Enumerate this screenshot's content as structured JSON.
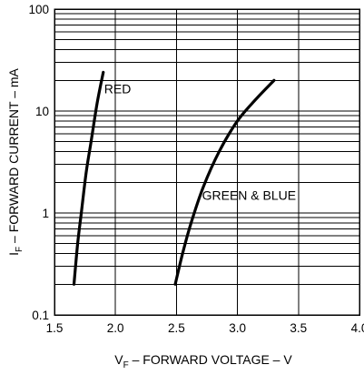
{
  "chart_data": {
    "type": "line",
    "x_scale": "linear",
    "y_scale": "log",
    "xlim": [
      1.5,
      4.0
    ],
    "ylim": [
      0.1,
      100
    ],
    "grid": true,
    "xlabel": {
      "prefix": "V",
      "subscript": "F",
      "suffix": " – FORWARD VOLTAGE – V"
    },
    "ylabel": {
      "prefix": "I",
      "subscript": "F",
      "suffix": " – FORWARD CURRENT – mA"
    },
    "x_ticks": [
      1.5,
      2.0,
      2.5,
      3.0,
      3.5,
      4.0
    ],
    "x_tick_labels": [
      "1.5",
      "2.0",
      "2.5",
      "3.0",
      "3.5",
      "4.0"
    ],
    "y_ticks": [
      0.1,
      1,
      10,
      100
    ],
    "y_tick_labels": [
      "0.1",
      "1",
      "10",
      "100"
    ],
    "series": [
      {
        "name": "RED",
        "x": [
          1.66,
          1.69,
          1.72,
          1.76,
          1.8,
          1.85,
          1.9
        ],
        "y": [
          0.2,
          0.5,
          1.0,
          2.5,
          5.0,
          12.0,
          24.0
        ]
      },
      {
        "name": "GREEN & BLUE",
        "x": [
          2.49,
          2.55,
          2.62,
          2.72,
          2.85,
          3.0,
          3.15,
          3.3
        ],
        "y": [
          0.2,
          0.4,
          0.8,
          1.8,
          4.0,
          8.0,
          13.0,
          20.0
        ]
      }
    ]
  }
}
